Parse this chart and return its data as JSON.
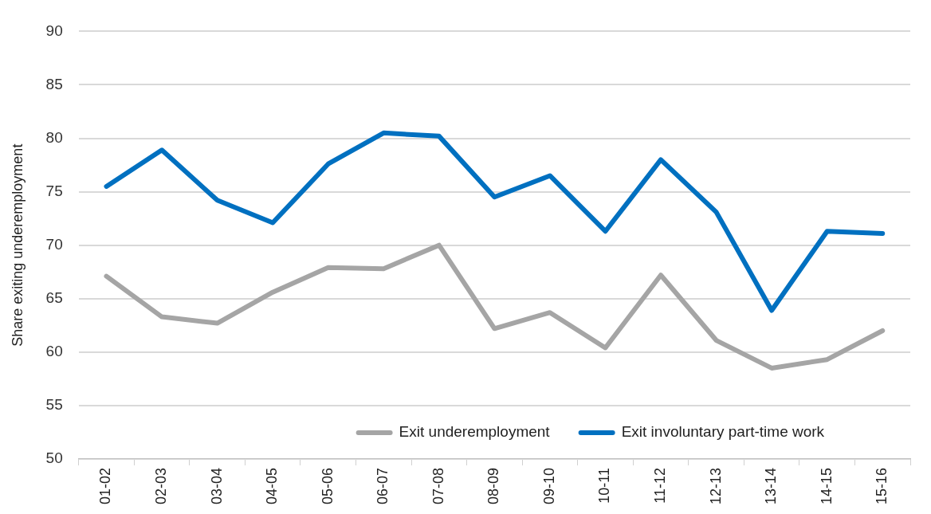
{
  "chart_data": {
    "type": "line",
    "ylabel": "Share exiting underemployment",
    "categories": [
      "01-02",
      "02-03",
      "03-04",
      "04-05",
      "05-06",
      "06-07",
      "07-08",
      "08-09",
      "09-10",
      "10-11",
      "11-12",
      "12-13",
      "13-14",
      "14-15",
      "15-16"
    ],
    "series": [
      {
        "name": "Exit underemployment",
        "color": "#a5a5a5",
        "values": [
          67.1,
          63.3,
          62.7,
          65.6,
          67.9,
          67.8,
          70.0,
          62.2,
          63.7,
          60.4,
          67.2,
          61.1,
          58.5,
          59.3,
          62.0
        ]
      },
      {
        "name": "Exit involuntary part-time work",
        "color": "#0070c0",
        "values": [
          75.5,
          78.9,
          74.2,
          72.1,
          77.6,
          80.5,
          80.2,
          74.5,
          76.5,
          71.3,
          78.0,
          73.1,
          63.9,
          71.3,
          71.1
        ]
      }
    ],
    "ylim": [
      50,
      90
    ],
    "yticks": [
      50,
      55,
      60,
      65,
      70,
      75,
      80,
      85,
      90
    ],
    "grid": "y",
    "legend": "bottom",
    "marker": "none",
    "line_style": "solid"
  }
}
